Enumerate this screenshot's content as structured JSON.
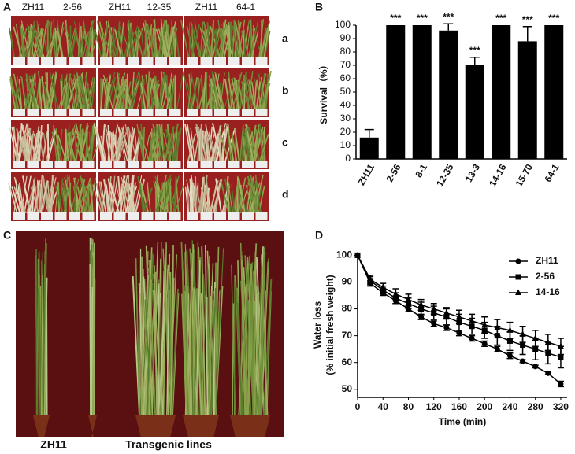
{
  "panel_a": {
    "label": "A",
    "column_headers": [
      "ZH11",
      "2-56",
      "ZH11",
      "12-35",
      "ZH11",
      "64-1"
    ],
    "row_labels": [
      "a",
      "b",
      "c",
      "d"
    ]
  },
  "panel_c": {
    "label": "C",
    "labels": [
      "ZH11",
      "Transgenic lines"
    ]
  },
  "chart_data": [
    {
      "type": "bar",
      "label": "B",
      "ylabel": "Survival（%）",
      "categories": [
        "ZH11",
        "2-56",
        "8-1",
        "12-35",
        "13-3",
        "14-16",
        "15-70",
        "64-1"
      ],
      "values": [
        16,
        100,
        100,
        96,
        70,
        100,
        88,
        100
      ],
      "errors": [
        6,
        0,
        0,
        5,
        6,
        0,
        11,
        0
      ],
      "annotations": [
        null,
        "***",
        "***",
        "***",
        "***",
        "***",
        "***",
        "***"
      ],
      "color": "#000000",
      "ylim": [
        0,
        100
      ],
      "yticks": [
        0,
        10,
        20,
        30,
        40,
        50,
        60,
        70,
        80,
        90,
        100
      ]
    },
    {
      "type": "line",
      "label": "D",
      "xlabel": "Time (min)",
      "ylabel": [
        "Water loss",
        "(% initial fresh weight)"
      ],
      "x": [
        0,
        20,
        40,
        60,
        80,
        100,
        120,
        140,
        160,
        180,
        200,
        220,
        240,
        260,
        280,
        300,
        320
      ],
      "series": [
        {
          "name": "ZH11",
          "color": "#000000",
          "marker": "circle",
          "values": [
            100,
            89.5,
            86,
            83,
            80,
            77,
            74.5,
            73,
            71,
            69,
            67,
            65,
            62.5,
            60.5,
            58.5,
            56,
            52
          ],
          "errors": [
            0,
            1,
            1,
            1,
            1,
            1,
            1,
            1,
            1,
            1,
            1,
            1,
            1,
            0.5,
            0.5,
            0.5,
            1
          ]
        },
        {
          "name": "2-56",
          "color": "#000000",
          "marker": "square",
          "values": [
            100,
            90.5,
            87,
            84,
            82,
            80,
            78.5,
            77,
            75,
            73.5,
            72,
            70,
            68,
            66.5,
            65,
            63.5,
            62
          ],
          "errors": [
            0,
            1.5,
            1.5,
            2,
            2,
            2.5,
            2.5,
            3,
            3,
            3,
            3,
            3.5,
            3.5,
            3.5,
            4,
            4,
            4
          ]
        },
        {
          "name": "14-16",
          "color": "#000000",
          "marker": "triangle",
          "values": [
            100,
            91,
            88,
            85.5,
            83.5,
            81.5,
            80,
            78.5,
            77,
            75.5,
            74,
            73,
            72,
            70.5,
            69,
            67.5,
            66
          ],
          "errors": [
            0,
            1.5,
            1.5,
            2,
            2,
            2,
            2,
            2,
            2.5,
            2.5,
            3,
            3,
            3,
            3,
            3,
            3,
            3
          ]
        }
      ],
      "xlim": [
        0,
        330
      ],
      "ylim": [
        47,
        101
      ],
      "xticks": [
        0,
        40,
        80,
        120,
        160,
        200,
        240,
        280,
        320
      ],
      "yticks": [
        50,
        60,
        70,
        80,
        90,
        100
      ],
      "legend": "upper right"
    }
  ]
}
